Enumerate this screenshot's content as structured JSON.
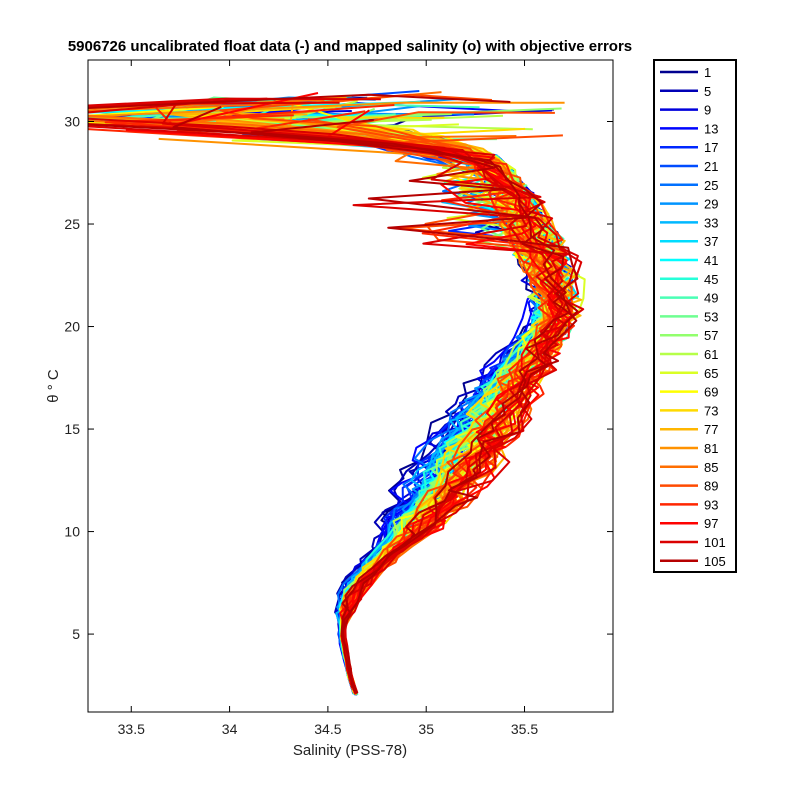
{
  "chart_data": {
    "type": "line",
    "title": "5906726 uncalibrated float data (-) and mapped salinity (o) with objective errors",
    "xlabel": "Salinity (PSS-78)",
    "ylabel": "θ ° C",
    "xlim": [
      33.28,
      35.95
    ],
    "ylim": [
      1.2,
      33.0
    ],
    "xticks": [
      33.5,
      34,
      34.5,
      35,
      35.5
    ],
    "xtick_labels": [
      "33.5",
      "34",
      "34.5",
      "35",
      "35.5"
    ],
    "yticks": [
      5,
      10,
      15,
      20,
      25,
      30
    ],
    "ytick_labels": [
      "5",
      "10",
      "15",
      "20",
      "25",
      "30"
    ],
    "grid": false,
    "legend_position": "outside-right",
    "colormap": "jet",
    "profiles": [
      "1",
      "5",
      "9",
      "13",
      "17",
      "21",
      "25",
      "29",
      "33",
      "37",
      "41",
      "45",
      "49",
      "53",
      "57",
      "61",
      "65",
      "69",
      "73",
      "77",
      "81",
      "85",
      "89",
      "93",
      "97",
      "101",
      "105"
    ],
    "series_colors": [
      "#00008f",
      "#0000b6",
      "#0000dc",
      "#0004ff",
      "#0028ff",
      "#004cff",
      "#0070ff",
      "#0094ff",
      "#00b8ff",
      "#00dcff",
      "#02feff",
      "#26ffd9",
      "#4affb5",
      "#6eff91",
      "#92ff6d",
      "#b6ff49",
      "#daff25",
      "#feff01",
      "#ffda00",
      "#ffb600",
      "#ff9200",
      "#ff6e00",
      "#ff4a00",
      "#ff2600",
      "#fe0200",
      "#da0000",
      "#b60000"
    ],
    "base_profile": {
      "theta": [
        2.1,
        2.4,
        3.0,
        4.0,
        5.0,
        6.0,
        7.0,
        8.0,
        9.0,
        10.0,
        11.0,
        12.0,
        13.0,
        14.0,
        15.0,
        16.0,
        17.0,
        18.0,
        19.0,
        20.0,
        21.0,
        22.0,
        23.0,
        24.0,
        25.0,
        26.0,
        27.0,
        28.0,
        29.0,
        29.6,
        30.0,
        30.3
      ],
      "salinity": [
        34.64,
        34.63,
        34.61,
        34.59,
        34.57,
        34.58,
        34.62,
        34.7,
        34.8,
        34.9,
        34.99,
        35.07,
        35.14,
        35.2,
        35.27,
        35.33,
        35.4,
        35.48,
        35.56,
        35.63,
        35.66,
        35.65,
        35.62,
        35.57,
        35.52,
        35.47,
        35.4,
        35.32,
        35.16,
        34.95,
        34.6,
        34.0
      ]
    }
  }
}
